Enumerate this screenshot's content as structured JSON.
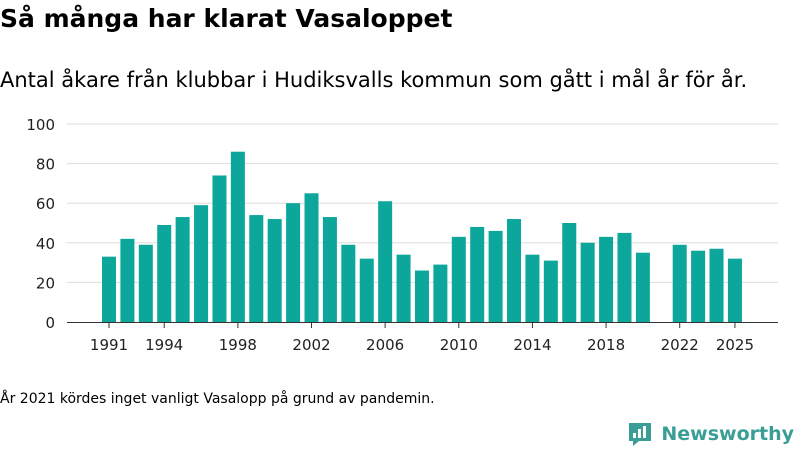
{
  "title": "Så många har klarat Vasaloppet",
  "subtitle": "Antal åkare från klubbar i Hudiksvalls kommun som gått i mål år för år.",
  "footnote": "År 2021 kördes inget vanligt Vasalopp på grund av pandemin.",
  "brand": {
    "name": "Newsworthy",
    "color": "#3a9e96",
    "icon": "newsworthy-chart-logo-icon"
  },
  "colors": {
    "bar": "#0ca69a",
    "grid": "#dddddd",
    "text": "#222222"
  },
  "chart_data": {
    "type": "bar",
    "title": "Så många har klarat Vasaloppet",
    "subtitle": "Antal åkare från klubbar i Hudiksvalls kommun som gått i mål år för år.",
    "xlabel": "",
    "ylabel": "",
    "ylim": [
      0,
      100
    ],
    "yticks": [
      0,
      20,
      40,
      60,
      80,
      100
    ],
    "xticks": [
      1991,
      1994,
      1998,
      2002,
      2006,
      2010,
      2014,
      2018,
      2022,
      2025
    ],
    "grid": true,
    "legend": "none",
    "categories": [
      1991,
      1992,
      1993,
      1994,
      1995,
      1996,
      1997,
      1998,
      1999,
      2000,
      2001,
      2002,
      2003,
      2004,
      2005,
      2006,
      2007,
      2008,
      2009,
      2010,
      2011,
      2012,
      2013,
      2014,
      2015,
      2016,
      2017,
      2018,
      2019,
      2020,
      2021,
      2022,
      2023,
      2024,
      2025
    ],
    "values": [
      33,
      42,
      39,
      49,
      53,
      59,
      74,
      86,
      54,
      52,
      60,
      65,
      53,
      39,
      32,
      61,
      34,
      26,
      29,
      43,
      48,
      46,
      52,
      34,
      31,
      50,
      40,
      43,
      45,
      35,
      null,
      39,
      36,
      37,
      32
    ]
  }
}
